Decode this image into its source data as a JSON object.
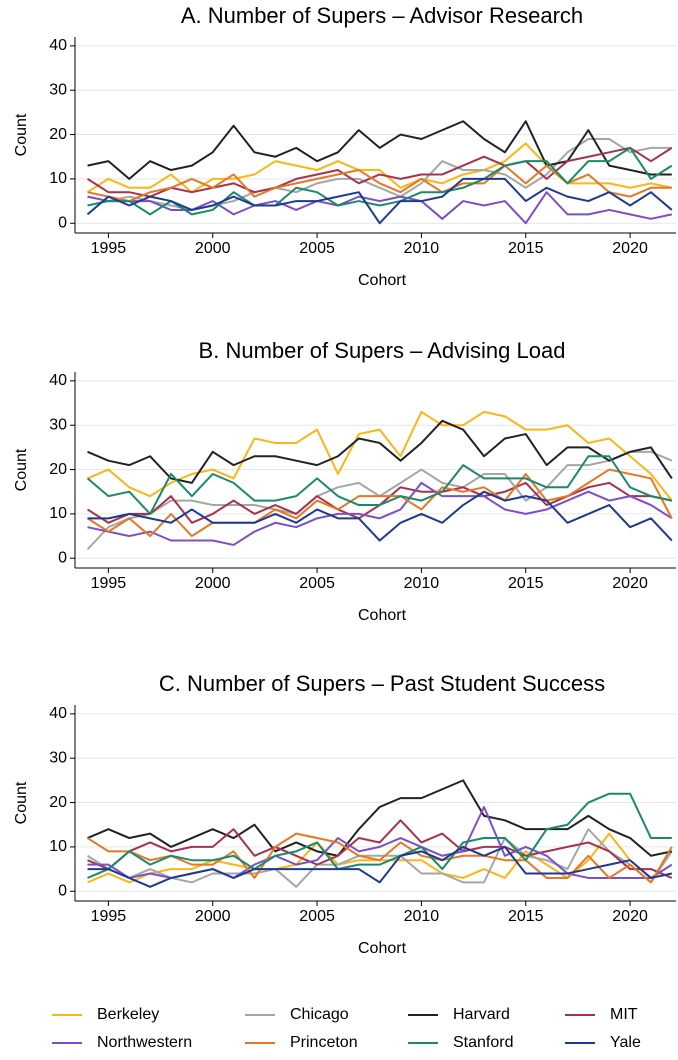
{
  "chart_data": [
    {
      "type": "line",
      "title": "A. Number of Supers – Advisor Research",
      "xlabel": "Cohort",
      "ylabel": "Count",
      "x": [
        1994,
        1995,
        1996,
        1997,
        1998,
        1999,
        2000,
        2001,
        2002,
        2003,
        2004,
        2005,
        2006,
        2007,
        2008,
        2009,
        2010,
        2011,
        2012,
        2013,
        2014,
        2015,
        2016,
        2017,
        2018,
        2019,
        2020,
        2021,
        2022
      ],
      "xlim": [
        1993.4,
        2022.2
      ],
      "xticks": [
        1995,
        2000,
        2005,
        2010,
        2015,
        2020
      ],
      "ylim": [
        -2.2,
        42
      ],
      "yticks": [
        0,
        10,
        20,
        30,
        40
      ],
      "grid": true,
      "series": [
        {
          "name": "Berkeley",
          "color": "#fdb515",
          "values": [
            7,
            10,
            8,
            8,
            11,
            7,
            10,
            10,
            11,
            14,
            13,
            12,
            14,
            12,
            12,
            8,
            10,
            9,
            11,
            12,
            14,
            18,
            13,
            9,
            9,
            9,
            8,
            9,
            8
          ]
        },
        {
          "name": "Chicago",
          "color": "#a6a6a6",
          "values": [
            6,
            5,
            6,
            5,
            4,
            3,
            4,
            5,
            7,
            8,
            7,
            9,
            10,
            10,
            8,
            6,
            9,
            14,
            12,
            12,
            11,
            8,
            11,
            16,
            19,
            19,
            16,
            17,
            17
          ]
        },
        {
          "name": "Harvard",
          "color": "#222222",
          "values": [
            13,
            14,
            10,
            14,
            12,
            13,
            16,
            22,
            16,
            15,
            17,
            14,
            16,
            21,
            17,
            20,
            19,
            21,
            23,
            19,
            16,
            23,
            13,
            14,
            21,
            13,
            12,
            11,
            11
          ]
        },
        {
          "name": "MIT",
          "color": "#a8324e",
          "values": [
            10,
            7,
            7,
            6,
            8,
            7,
            8,
            9,
            7,
            8,
            10,
            11,
            12,
            9,
            11,
            10,
            11,
            11,
            13,
            15,
            13,
            14,
            10,
            14,
            15,
            16,
            17,
            14,
            17
          ]
        },
        {
          "name": "Northwestern",
          "color": "#7b4fc9",
          "values": [
            6,
            5,
            5,
            5,
            3,
            3,
            5,
            2,
            4,
            5,
            3,
            5,
            4,
            6,
            5,
            6,
            5,
            1,
            5,
            4,
            5,
            0,
            7,
            2,
            2,
            3,
            2,
            1,
            2
          ]
        },
        {
          "name": "Princeton",
          "color": "#e87722",
          "values": [
            7,
            6,
            5,
            7,
            8,
            10,
            8,
            11,
            6,
            8,
            9,
            10,
            11,
            12,
            9,
            7,
            10,
            7,
            9,
            9,
            13,
            9,
            13,
            9,
            11,
            7,
            6,
            8,
            8
          ]
        },
        {
          "name": "Stanford",
          "color": "#1b8a6b",
          "values": [
            4,
            5,
            5,
            2,
            5,
            2,
            3,
            7,
            4,
            4,
            8,
            7,
            4,
            5,
            4,
            5,
            7,
            7,
            8,
            10,
            13,
            14,
            14,
            9,
            14,
            14,
            17,
            10,
            13
          ]
        },
        {
          "name": "Yale",
          "color": "#1f3a93",
          "values": [
            2,
            6,
            4,
            6,
            5,
            3,
            4,
            6,
            4,
            4,
            5,
            5,
            6,
            7,
            0,
            5,
            5,
            6,
            10,
            10,
            10,
            5,
            8,
            6,
            5,
            7,
            4,
            7,
            3
          ]
        }
      ]
    },
    {
      "type": "line",
      "title": "B. Number of Supers – Advising Load",
      "xlabel": "Cohort",
      "ylabel": "Count",
      "x": [
        1994,
        1995,
        1996,
        1997,
        1998,
        1999,
        2000,
        2001,
        2002,
        2003,
        2004,
        2005,
        2006,
        2007,
        2008,
        2009,
        2010,
        2011,
        2012,
        2013,
        2014,
        2015,
        2016,
        2017,
        2018,
        2019,
        2020,
        2021,
        2022
      ],
      "xlim": [
        1993.4,
        2022.2
      ],
      "xticks": [
        1995,
        2000,
        2005,
        2010,
        2015,
        2020
      ],
      "ylim": [
        -2.2,
        42
      ],
      "yticks": [
        0,
        10,
        20,
        30,
        40
      ],
      "grid": true,
      "series": [
        {
          "name": "Berkeley",
          "color": "#fdb515",
          "values": [
            18,
            20,
            16,
            14,
            17,
            19,
            20,
            18,
            27,
            26,
            26,
            29,
            19,
            28,
            29,
            23,
            33,
            30,
            30,
            33,
            32,
            29,
            29,
            30,
            26,
            27,
            23,
            19,
            13
          ]
        },
        {
          "name": "Chicago",
          "color": "#a6a6a6",
          "values": [
            2,
            7,
            9,
            10,
            13,
            13,
            12,
            12,
            12,
            11,
            10,
            14,
            16,
            17,
            14,
            17,
            20,
            17,
            16,
            19,
            19,
            13,
            16,
            21,
            21,
            22,
            24,
            24,
            22
          ]
        },
        {
          "name": "Harvard",
          "color": "#222222",
          "values": [
            24,
            22,
            21,
            23,
            18,
            17,
            24,
            21,
            23,
            23,
            22,
            21,
            23,
            27,
            26,
            22,
            26,
            31,
            29,
            23,
            27,
            28,
            21,
            25,
            25,
            22,
            24,
            25,
            18
          ]
        },
        {
          "name": "MIT",
          "color": "#a8324e",
          "values": [
            11,
            8,
            10,
            10,
            14,
            8,
            10,
            13,
            10,
            12,
            10,
            14,
            11,
            9,
            12,
            16,
            15,
            15,
            16,
            14,
            15,
            17,
            12,
            14,
            16,
            17,
            14,
            14,
            13
          ]
        },
        {
          "name": "Northwestern",
          "color": "#7b4fc9",
          "values": [
            7,
            6,
            5,
            6,
            4,
            4,
            4,
            3,
            6,
            8,
            7,
            9,
            10,
            10,
            9,
            11,
            17,
            14,
            14,
            14,
            11,
            10,
            11,
            13,
            15,
            13,
            14,
            12,
            9
          ]
        },
        {
          "name": "Princeton",
          "color": "#e87722",
          "values": [
            9,
            6,
            9,
            5,
            10,
            5,
            8,
            8,
            8,
            11,
            9,
            13,
            11,
            14,
            14,
            14,
            11,
            16,
            15,
            16,
            13,
            19,
            13,
            14,
            17,
            20,
            19,
            18,
            9
          ]
        },
        {
          "name": "Stanford",
          "color": "#1b8a6b",
          "values": [
            18,
            14,
            15,
            10,
            19,
            14,
            19,
            17,
            13,
            13,
            14,
            18,
            14,
            12,
            12,
            14,
            13,
            15,
            21,
            18,
            18,
            18,
            16,
            16,
            23,
            23,
            16,
            14,
            13
          ]
        },
        {
          "name": "Yale",
          "color": "#1f3a93",
          "values": [
            9,
            9,
            10,
            9,
            8,
            11,
            8,
            8,
            8,
            10,
            8,
            11,
            9,
            9,
            4,
            8,
            10,
            8,
            12,
            15,
            13,
            14,
            13,
            8,
            10,
            12,
            7,
            9,
            4
          ]
        }
      ]
    },
    {
      "type": "line",
      "title": "C. Number of Supers – Past Student Success",
      "xlabel": "Cohort",
      "ylabel": "Count",
      "x": [
        1994,
        1995,
        1996,
        1997,
        1998,
        1999,
        2000,
        2001,
        2002,
        2003,
        2004,
        2005,
        2006,
        2007,
        2008,
        2009,
        2010,
        2011,
        2012,
        2013,
        2014,
        2015,
        2016,
        2017,
        2018,
        2019,
        2020,
        2021,
        2022
      ],
      "xlim": [
        1993.4,
        2022.2
      ],
      "xticks": [
        1995,
        2000,
        2005,
        2010,
        2015,
        2020
      ],
      "ylim": [
        -2.2,
        42
      ],
      "yticks": [
        0,
        10,
        20,
        30,
        40
      ],
      "grid": true,
      "series": [
        {
          "name": "Berkeley",
          "color": "#fdb515",
          "values": [
            2,
            4,
            2,
            4,
            5,
            5,
            7,
            6,
            5,
            5,
            6,
            11,
            6,
            7,
            7,
            7,
            7,
            4,
            3,
            5,
            3,
            9,
            6,
            3,
            7,
            13,
            7,
            3,
            4
          ]
        },
        {
          "name": "Chicago",
          "color": "#a6a6a6",
          "values": [
            8,
            5,
            3,
            5,
            3,
            2,
            4,
            4,
            4,
            5,
            1,
            6,
            6,
            8,
            8,
            8,
            4,
            4,
            2,
            2,
            12,
            8,
            7,
            5,
            14,
            9,
            6,
            2,
            9
          ]
        },
        {
          "name": "Harvard",
          "color": "#222222",
          "values": [
            12,
            14,
            12,
            13,
            10,
            12,
            14,
            12,
            15,
            9,
            11,
            9,
            8,
            14,
            19,
            21,
            21,
            23,
            25,
            17,
            16,
            14,
            14,
            14,
            17,
            14,
            12,
            8,
            9
          ]
        },
        {
          "name": "MIT",
          "color": "#a8324e",
          "values": [
            7,
            5,
            9,
            11,
            9,
            10,
            10,
            14,
            8,
            10,
            8,
            6,
            8,
            12,
            11,
            16,
            11,
            13,
            9,
            10,
            10,
            8,
            9,
            10,
            11,
            9,
            5,
            5,
            3
          ]
        },
        {
          "name": "Northwestern",
          "color": "#7b4fc9",
          "values": [
            6,
            6,
            3,
            4,
            3,
            4,
            5,
            3,
            6,
            8,
            6,
            7,
            12,
            9,
            10,
            12,
            10,
            8,
            9,
            19,
            8,
            10,
            8,
            4,
            3,
            3,
            3,
            3,
            6
          ]
        },
        {
          "name": "Princeton",
          "color": "#e87722",
          "values": [
            12,
            9,
            9,
            7,
            8,
            6,
            6,
            9,
            3,
            10,
            13,
            12,
            11,
            8,
            7,
            11,
            8,
            7,
            8,
            8,
            7,
            7,
            3,
            3,
            8,
            3,
            6,
            2,
            10
          ]
        },
        {
          "name": "Stanford",
          "color": "#1b8a6b",
          "values": [
            3,
            5,
            9,
            6,
            8,
            7,
            7,
            8,
            5,
            8,
            9,
            11,
            5,
            6,
            6,
            8,
            10,
            5,
            11,
            12,
            12,
            7,
            14,
            15,
            20,
            22,
            22,
            12,
            12
          ]
        },
        {
          "name": "Yale",
          "color": "#1f3a93",
          "values": [
            5,
            5,
            3,
            1,
            3,
            4,
            5,
            3,
            5,
            5,
            5,
            5,
            5,
            5,
            2,
            8,
            9,
            7,
            10,
            8,
            10,
            4,
            4,
            4,
            5,
            6,
            7,
            3,
            4
          ]
        }
      ]
    }
  ]
}
